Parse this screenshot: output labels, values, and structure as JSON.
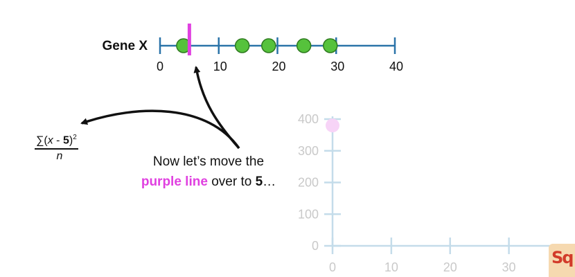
{
  "gene_axis": {
    "label": "Gene X",
    "min": 0,
    "max": 40,
    "ticks": [
      0,
      10,
      20,
      30,
      40
    ],
    "tick_labels": [
      "0",
      "10",
      "20",
      "30",
      "40"
    ],
    "points": [
      4,
      14,
      18.5,
      24.5,
      29
    ],
    "marker_value": 5,
    "colors": {
      "axis": "#2a73a8",
      "point_fill": "#56c23c",
      "point_stroke": "#2e7a1f",
      "marker": "#e040e0"
    }
  },
  "caption": {
    "line1": "Now let’s move the",
    "highlight": "purple line",
    "line2_rest": " over to ",
    "value": "5",
    "ellipsis": "…"
  },
  "formula": {
    "sigma": "∑",
    "open": "(",
    "var": "x",
    "minus": " - ",
    "value": "5",
    "close": ")",
    "exponent": "2",
    "denominator": "n"
  },
  "chart_data": {
    "type": "scatter",
    "xlim": [
      0,
      35
    ],
    "ylim": [
      0,
      400
    ],
    "x_ticks": [
      0,
      10,
      20,
      30
    ],
    "y_ticks": [
      0,
      100,
      200,
      300,
      400
    ],
    "x_tick_labels": [
      "0",
      "10",
      "20",
      "30"
    ],
    "y_tick_labels": [
      "0",
      "100",
      "200",
      "300",
      "400"
    ],
    "points": [
      {
        "x": 0,
        "y": 380
      }
    ],
    "grid": false,
    "colors": {
      "axis": "#c4dcea",
      "tick_text": "#c9c9c9",
      "point": "#f7d4f7"
    }
  },
  "logo": {
    "text": "Sq"
  }
}
